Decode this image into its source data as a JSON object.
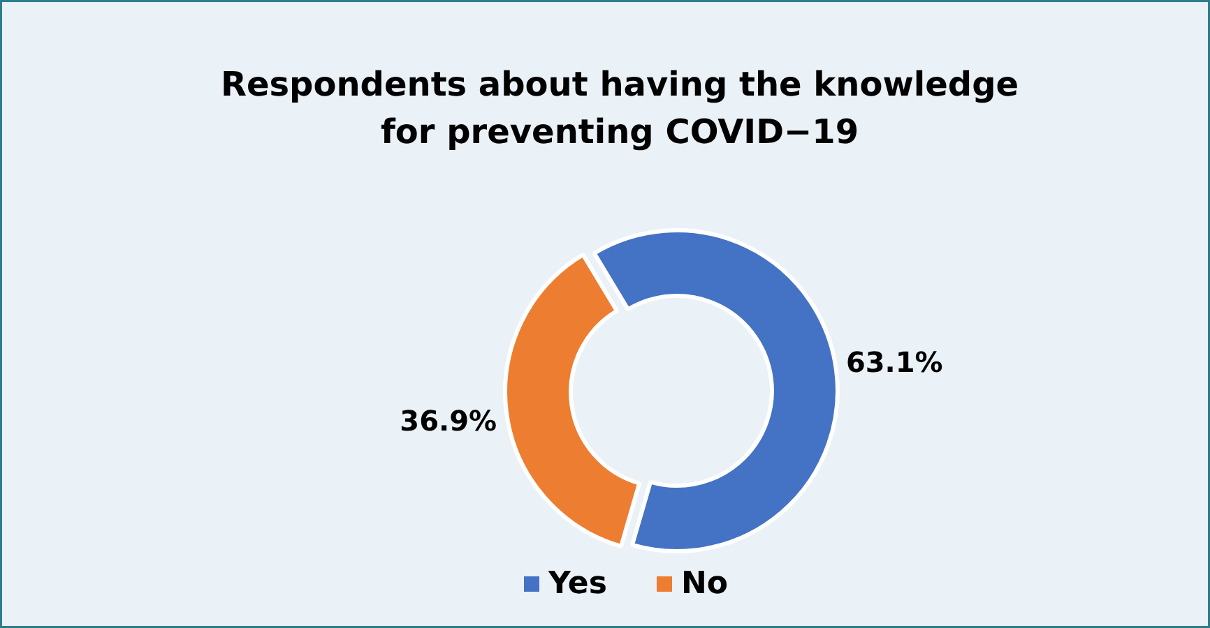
{
  "chart_data": {
    "type": "donut",
    "title": "Respondents about having the knowledge\nfor preventing COVID−19",
    "categories": [
      "Yes",
      "No"
    ],
    "values": [
      63.1,
      36.9
    ],
    "colors": [
      "#4472c4",
      "#ed7d31"
    ],
    "value_labels": [
      "63.1%",
      "36.9%"
    ],
    "legend": "bottom"
  }
}
